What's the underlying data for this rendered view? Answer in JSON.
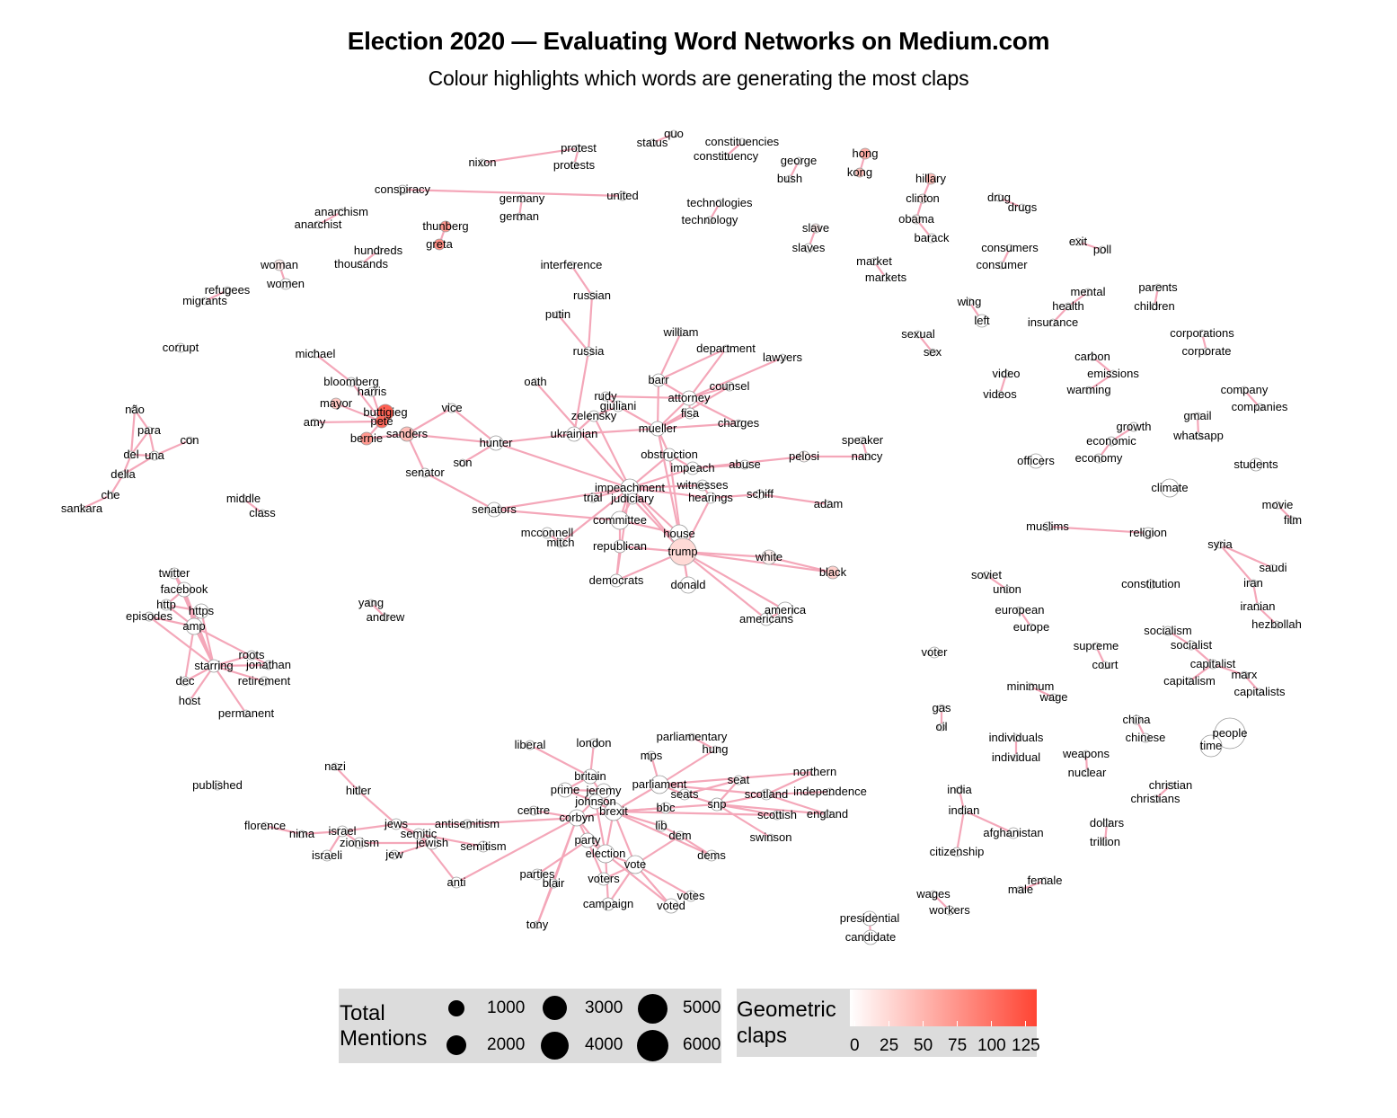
{
  "title": "Election 2020 — Evaluating Word Networks on Medium.com",
  "subtitle": "Colour highlights which words are generating the most claps",
  "colors": {
    "edge": "#f4a7b9",
    "node_low": "#ffffff",
    "node_high": "#ff4433",
    "node_stroke": "#555555"
  },
  "legend_size": {
    "title_line1": "Total",
    "title_line2": "Mentions",
    "items": [
      "1000",
      "2000",
      "3000",
      "4000",
      "5000",
      "6000"
    ]
  },
  "legend_colour": {
    "title_line1": "Geometric",
    "title_line2": "claps",
    "ticks": [
      "0",
      "25",
      "50",
      "75",
      "100",
      "125"
    ]
  },
  "words": [
    "nixon",
    "protest",
    "protests",
    "status",
    "quo",
    "constituencies",
    "constituency",
    "george",
    "bush",
    "hong",
    "kong",
    "conspiracy",
    "united",
    "germany",
    "german",
    "technologies",
    "technology",
    "hillary",
    "clinton",
    "obama",
    "barack",
    "drug",
    "drugs",
    "anarchism",
    "anarchist",
    "thunberg",
    "greta",
    "slave",
    "slaves",
    "consumers",
    "consumer",
    "exit",
    "poll",
    "hundreds",
    "thousands",
    "woman",
    "women",
    "market",
    "markets",
    "interference",
    "refugees",
    "migrants",
    "russian",
    "wing",
    "left",
    "mental",
    "health",
    "insurance",
    "parents",
    "children",
    "putin",
    "sexual",
    "sex",
    "corporations",
    "corporate",
    "corrupt",
    "william",
    "russia",
    "department",
    "michael",
    "lawyers",
    "carbon",
    "emissions",
    "warming",
    "barr",
    "oath",
    "counsel",
    "bloomberg",
    "harris",
    "rudy",
    "attorney",
    "giuliani",
    "video",
    "videos",
    "company",
    "companies",
    "mayor",
    "zelensky",
    "fisa",
    "não",
    "buttigieg",
    "pete",
    "amy",
    "vice",
    "mueller",
    "charges",
    "gmail",
    "growth",
    "para",
    "sanders",
    "bernie",
    "ukrainian",
    "whatsapp",
    "economic",
    "con",
    "hunter",
    "obstruction",
    "speaker",
    "pelosi",
    "nancy",
    "del",
    "una",
    "abuse",
    "impeach",
    "officers",
    "economy",
    "students",
    "son",
    "senator",
    "della",
    "witnesses",
    "schiff",
    "impeachment",
    "hearings",
    "climate",
    "trial",
    "judiciary",
    "adam",
    "che",
    "middle",
    "class",
    "sankara",
    "senators",
    "committee",
    "movie",
    "film",
    "muslims",
    "religion",
    "house",
    "mcconnell",
    "mitch",
    "republican",
    "trump",
    "syria",
    "white",
    "saudi",
    "black",
    "twitter",
    "facebook",
    "soviet",
    "democrats",
    "donald",
    "iran",
    "union",
    "constitution",
    "yang",
    "http",
    "https",
    "episodes",
    "amp",
    "america",
    "european",
    "iranian",
    "americans",
    "europe",
    "hezbollah",
    "socialism",
    "socialist",
    "supreme",
    "court",
    "voter",
    "roots",
    "starring",
    "jonathan",
    "dec",
    "retirement",
    "capitalist",
    "marx",
    "minimum",
    "capitalism",
    "host",
    "wage",
    "capitalists",
    "permanent",
    "gas",
    "oil",
    "china",
    "chinese",
    "people",
    "time",
    "liberal",
    "london",
    "parliamentary",
    "individuals",
    "hung",
    "individual",
    "mps",
    "nazi",
    "weapons",
    "nuclear",
    "britain",
    "parliament",
    "seat",
    "northern",
    "christian",
    "prime",
    "jeremy",
    "hitler",
    "johnson",
    "scotland",
    "independence",
    "published",
    "india",
    "christians",
    "seats",
    "centre",
    "brexit",
    "bbc",
    "snp",
    "corbyn",
    "scottish",
    "england",
    "florence",
    "jews",
    "antisemitism",
    "lib",
    "dollars",
    "nima",
    "israel",
    "semitic",
    "zionism",
    "jewish",
    "indian",
    "afghanistan",
    "dem",
    "swinson",
    "party",
    "trillion",
    "israeli",
    "jew",
    "semitism",
    "election",
    "dems",
    "citizenship",
    "vote",
    "female",
    "anti",
    "parties",
    "voters",
    "blair",
    "male",
    "votes",
    "campaign",
    "voted",
    "wages",
    "workers",
    "tony",
    "presidential",
    "candidate"
  ]
}
